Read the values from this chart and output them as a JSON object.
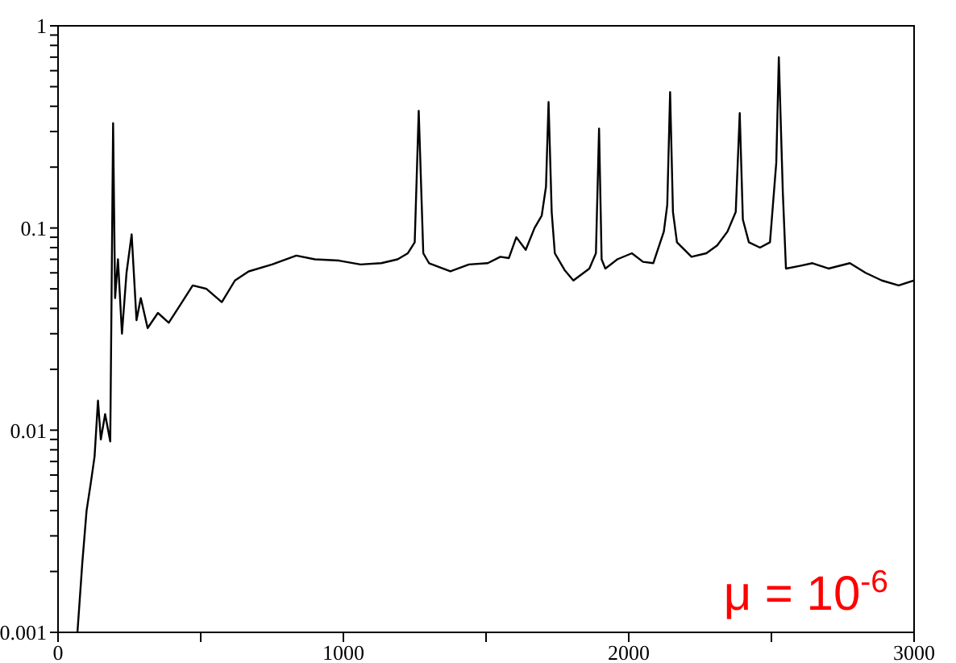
{
  "chart_data": {
    "type": "line",
    "x": [
      68,
      85,
      100,
      115,
      128,
      140,
      150,
      165,
      183,
      193,
      200,
      210,
      224,
      240,
      258,
      275,
      290,
      314,
      350,
      388,
      430,
      472,
      520,
      574,
      620,
      668,
      750,
      835,
      900,
      984,
      1060,
      1133,
      1190,
      1226,
      1250,
      1264,
      1280,
      1300,
      1375,
      1440,
      1506,
      1550,
      1580,
      1606,
      1639,
      1670,
      1695,
      1710,
      1719,
      1730,
      1741,
      1775,
      1806,
      1862,
      1885,
      1896,
      1905,
      1918,
      1960,
      2011,
      2050,
      2086,
      2123,
      2135,
      2145,
      2155,
      2169,
      2220,
      2272,
      2310,
      2346,
      2375,
      2389,
      2400,
      2421,
      2460,
      2495,
      2517,
      2526,
      2540,
      2551,
      2600,
      2644,
      2700,
      2775,
      2830,
      2887,
      2946,
      3000
    ],
    "series": [
      {
        "color": "#000000",
        "values": [
          0.001,
          0.0022,
          0.004,
          0.0055,
          0.0074,
          0.014,
          0.009,
          0.012,
          0.0088,
          0.33,
          0.045,
          0.07,
          0.03,
          0.06,
          0.093,
          0.035,
          0.045,
          0.032,
          0.038,
          0.034,
          0.042,
          0.052,
          0.05,
          0.043,
          0.055,
          0.061,
          0.066,
          0.073,
          0.07,
          0.069,
          0.066,
          0.067,
          0.07,
          0.075,
          0.085,
          0.38,
          0.075,
          0.067,
          0.061,
          0.066,
          0.067,
          0.072,
          0.071,
          0.09,
          0.078,
          0.1,
          0.115,
          0.16,
          0.42,
          0.12,
          0.075,
          0.062,
          0.055,
          0.063,
          0.075,
          0.31,
          0.07,
          0.063,
          0.07,
          0.075,
          0.068,
          0.067,
          0.096,
          0.13,
          0.47,
          0.12,
          0.085,
          0.072,
          0.075,
          0.082,
          0.096,
          0.12,
          0.37,
          0.11,
          0.085,
          0.08,
          0.085,
          0.21,
          0.7,
          0.15,
          0.063,
          0.065,
          0.067,
          0.063,
          0.067,
          0.06,
          0.055,
          0.052,
          0.055
        ]
      }
    ],
    "xlim": [
      0,
      3000
    ],
    "xticks": [
      0,
      {
        "value": 500,
        "label": null
      },
      1000,
      {
        "value": 1500,
        "label": null
      },
      2000,
      {
        "value": 2500,
        "label": null
      },
      3000
    ],
    "ylim": [
      0.001,
      1
    ],
    "yticks": [
      0.001,
      {
        "value": 0.002,
        "label": null
      },
      {
        "value": 0.003,
        "label": null
      },
      {
        "value": 0.004,
        "label": null
      },
      {
        "value": 0.005,
        "label": null
      },
      {
        "value": 0.006,
        "label": null
      },
      {
        "value": 0.007,
        "label": null
      },
      {
        "value": 0.008,
        "label": null
      },
      {
        "value": 0.009,
        "label": null
      },
      0.01,
      {
        "value": 0.02,
        "label": null
      },
      {
        "value": 0.03,
        "label": null
      },
      {
        "value": 0.04,
        "label": null
      },
      {
        "value": 0.05,
        "label": null
      },
      {
        "value": 0.06,
        "label": null
      },
      {
        "value": 0.07,
        "label": null
      },
      {
        "value": 0.08,
        "label": null
      },
      {
        "value": 0.09,
        "label": null
      },
      0.1,
      {
        "value": 0.2,
        "label": null
      },
      {
        "value": 0.3,
        "label": null
      },
      {
        "value": 0.4,
        "label": null
      },
      {
        "value": 0.5,
        "label": null
      },
      {
        "value": 0.6,
        "label": null
      },
      {
        "value": 0.7,
        "label": null
      },
      {
        "value": 0.8,
        "label": null
      },
      {
        "value": 0.9,
        "label": null
      },
      1
    ],
    "log": "y",
    "grid": false,
    "marker": "none",
    "line_style": "solid",
    "annotations": [
      "μ = 10$^{-6}$"
    ]
  }
}
